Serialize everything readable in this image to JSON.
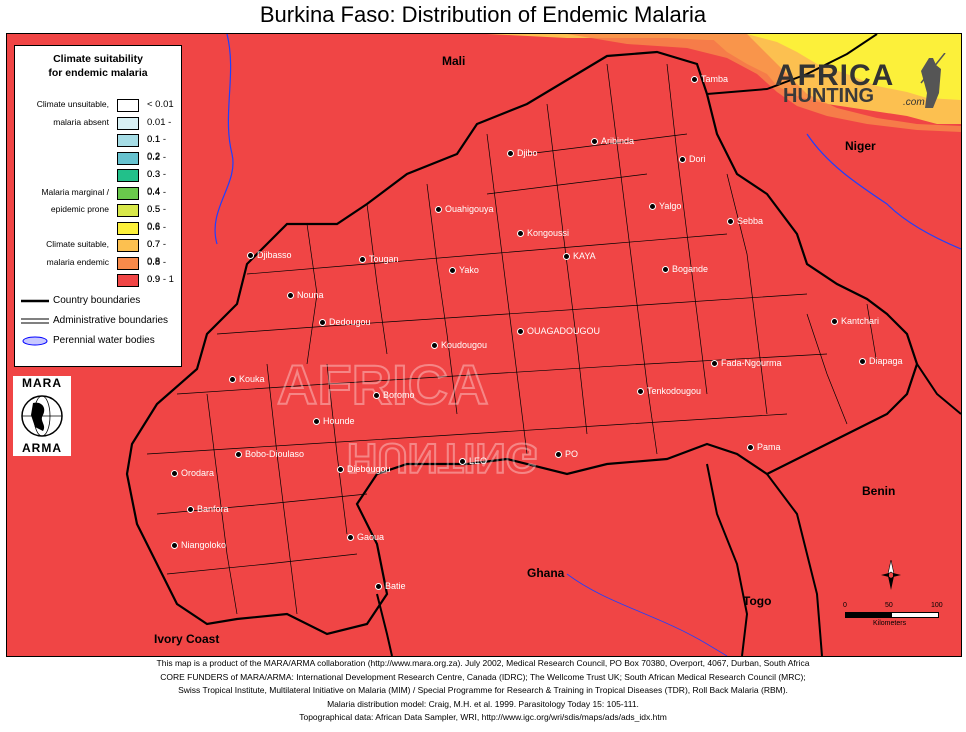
{
  "title": "Burkina Faso: Distribution of Endemic Malaria",
  "legend": {
    "title": "Climate suitability\nfor endemic malaria",
    "classes": [
      {
        "range": "< 0.01",
        "color": "#ffffff",
        "side": "Climate unsuitable,"
      },
      {
        "range": "0.01 - 0.1",
        "color": "#d8f0f4",
        "side": "malaria absent"
      },
      {
        "range": "0.1 - 0.2",
        "color": "#a6dde6",
        "side": ""
      },
      {
        "range": "0.2 - 0.3",
        "color": "#66c2cf",
        "side": ""
      },
      {
        "range": "0.3 - 0.4",
        "color": "#22c08a",
        "side": ""
      },
      {
        "range": "0.4 - 0.5",
        "color": "#6ac84c",
        "side": "Malaria marginal /"
      },
      {
        "range": "0.5 - 0.6",
        "color": "#d8e84a",
        "side": "epidemic prone"
      },
      {
        "range": "0.6 - 0.7",
        "color": "#fcf03a",
        "side": ""
      },
      {
        "range": "0.7 - 0.8",
        "color": "#fcc050",
        "side": "Climate suitable,"
      },
      {
        "range": "0.8 - 0.9",
        "color": "#f88a4a",
        "side": "malaria endemic"
      },
      {
        "range": "0.9 - 1",
        "color": "#f04545",
        "side": ""
      }
    ],
    "lines": [
      {
        "label": "Country boundaries"
      },
      {
        "label": "Administrative boundaries"
      },
      {
        "label": "Perennial water bodies"
      }
    ]
  },
  "logo": {
    "top": "MARA",
    "bottom": "ARMA"
  },
  "watermark": {
    "line1": "AFRICA",
    "line2": "HUNTING",
    "suffix": ".com"
  },
  "countries": [
    {
      "name": "Mali"
    },
    {
      "name": "Niger"
    },
    {
      "name": "Benin"
    },
    {
      "name": "Ghana"
    },
    {
      "name": "Togo"
    },
    {
      "name": "Ivory Coast"
    }
  ],
  "towns": [
    {
      "name": "Tamba"
    },
    {
      "name": "Aribinda"
    },
    {
      "name": "Djibo"
    },
    {
      "name": "Dori"
    },
    {
      "name": "Ouahigouya"
    },
    {
      "name": "Yalgo"
    },
    {
      "name": "Sebba"
    },
    {
      "name": "Kongoussi"
    },
    {
      "name": "KAYA"
    },
    {
      "name": "Djibasso"
    },
    {
      "name": "Tougan"
    },
    {
      "name": "Yako"
    },
    {
      "name": "Bogande"
    },
    {
      "name": "Nouna"
    },
    {
      "name": "Dedougou"
    },
    {
      "name": "OUAGADOUGOU"
    },
    {
      "name": "Kantchari"
    },
    {
      "name": "Koudougou"
    },
    {
      "name": "Fada-Ngourma"
    },
    {
      "name": "Diapaga"
    },
    {
      "name": "Kouka"
    },
    {
      "name": "Boromo"
    },
    {
      "name": "Tenkodougou"
    },
    {
      "name": "Hounde"
    },
    {
      "name": "Pama"
    },
    {
      "name": "Bobo-Dioulaso"
    },
    {
      "name": "LEO"
    },
    {
      "name": "PO"
    },
    {
      "name": "Orodara"
    },
    {
      "name": "Diebougou"
    },
    {
      "name": "Banfora"
    },
    {
      "name": "Niangoloko"
    },
    {
      "name": "Gaoua"
    },
    {
      "name": "Batie"
    }
  ],
  "scale": {
    "ticks": [
      "0",
      "50",
      "100"
    ],
    "unit": "Kilometers"
  },
  "footer": [
    "This map is a product of the MARA/ARMA collaboration (http://www.mara.org.za).  July 2002, Medical Research Council, PO Box 70380, Overport, 4067, Durban, South Africa",
    "CORE FUNDERS of MARA/ARMA: International Development Research Centre, Canada (IDRC); The Wellcome Trust UK; South African Medical Research Council (MRC);",
    "Swiss Tropical Institute, Multilateral Initiative on Malaria (MIM) / Special Programme for Research & Training in Tropical Diseases (TDR), Roll Back Malaria (RBM).",
    "Malaria distribution model: Craig, M.H. et al. 1999.  Parasitology Today 15: 105-111.",
    "Topographical data: African Data Sampler, WRI, http://www.igc.org/wri/sdis/maps/ads/ads_idx.htm"
  ]
}
